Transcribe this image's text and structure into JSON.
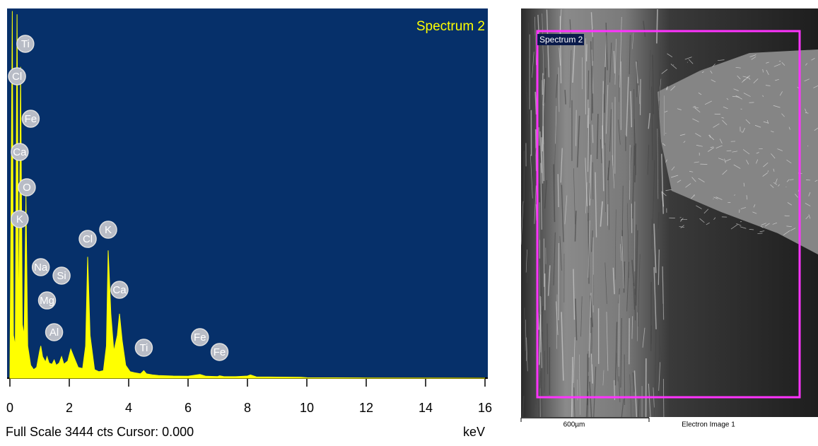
{
  "chart_data": {
    "type": "area",
    "title": "Spectrum 2",
    "x_label": "keV",
    "footer": "Full Scale 3444 cts Cursor: 0.000",
    "color": "#ffff00",
    "background": "#06306a",
    "xlim": [
      0,
      16
    ],
    "ylim": [
      0,
      3444
    ],
    "xticks": [
      0,
      2,
      4,
      6,
      8,
      10,
      12,
      14,
      16
    ],
    "x": [
      0,
      0.08,
      0.12,
      0.18,
      0.24,
      0.3,
      0.36,
      0.42,
      0.48,
      0.54,
      0.6,
      0.7,
      0.8,
      0.9,
      1,
      1.04,
      1.1,
      1.2,
      1.25,
      1.32,
      1.42,
      1.49,
      1.56,
      1.66,
      1.74,
      1.82,
      1.95,
      2.05,
      2.15,
      2.3,
      2.45,
      2.55,
      2.62,
      2.7,
      2.85,
      3,
      3.15,
      3.25,
      3.31,
      3.4,
      3.5,
      3.62,
      3.69,
      3.78,
      3.9,
      4.05,
      4.2,
      4.4,
      4.51,
      4.6,
      4.8,
      5,
      5.5,
      6,
      6.4,
      6.6,
      7,
      7.06,
      7.2,
      7.6,
      8,
      8.1,
      8.3,
      9,
      9.8,
      10,
      12,
      16
    ],
    "values": [
      0,
      3420,
      400,
      300,
      3390,
      350,
      2900,
      500,
      400,
      1700,
      300,
      120,
      80,
      100,
      250,
      300,
      200,
      150,
      200,
      140,
      130,
      170,
      120,
      140,
      200,
      130,
      160,
      270,
      200,
      100,
      90,
      300,
      1130,
      400,
      80,
      60,
      70,
      300,
      1190,
      600,
      250,
      400,
      600,
      350,
      120,
      60,
      50,
      40,
      70,
      40,
      30,
      25,
      20,
      18,
      35,
      18,
      15,
      22,
      15,
      14,
      20,
      30,
      12,
      10,
      8,
      4,
      2,
      0
    ],
    "annotations": [
      {
        "text": "Ti",
        "x": 0.52,
        "y": 3115
      },
      {
        "text": "Cl",
        "x": 0.24,
        "y": 2812
      },
      {
        "text": "Fe",
        "x": 0.7,
        "y": 2417
      },
      {
        "text": "Ca",
        "x": 0.33,
        "y": 2107
      },
      {
        "text": "O",
        "x": 0.57,
        "y": 1778
      },
      {
        "text": "K",
        "x": 0.33,
        "y": 1482
      },
      {
        "text": "Na",
        "x": 1.04,
        "y": 1034
      },
      {
        "text": "Si",
        "x": 1.74,
        "y": 955
      },
      {
        "text": "Mg",
        "x": 1.25,
        "y": 724
      },
      {
        "text": "Al",
        "x": 1.49,
        "y": 428
      },
      {
        "text": "Cl",
        "x": 2.62,
        "y": 1297
      },
      {
        "text": "K",
        "x": 3.31,
        "y": 1383
      },
      {
        "text": "Ca",
        "x": 3.69,
        "y": 823
      },
      {
        "text": "Ti",
        "x": 4.51,
        "y": 283
      },
      {
        "text": "Fe",
        "x": 6.4,
        "y": 382
      },
      {
        "text": "Fe",
        "x": 7.06,
        "y": 244
      }
    ]
  },
  "image": {
    "region_label": "Spectrum 2",
    "scale_bar": "600µm",
    "caption": "Electron Image 1"
  }
}
